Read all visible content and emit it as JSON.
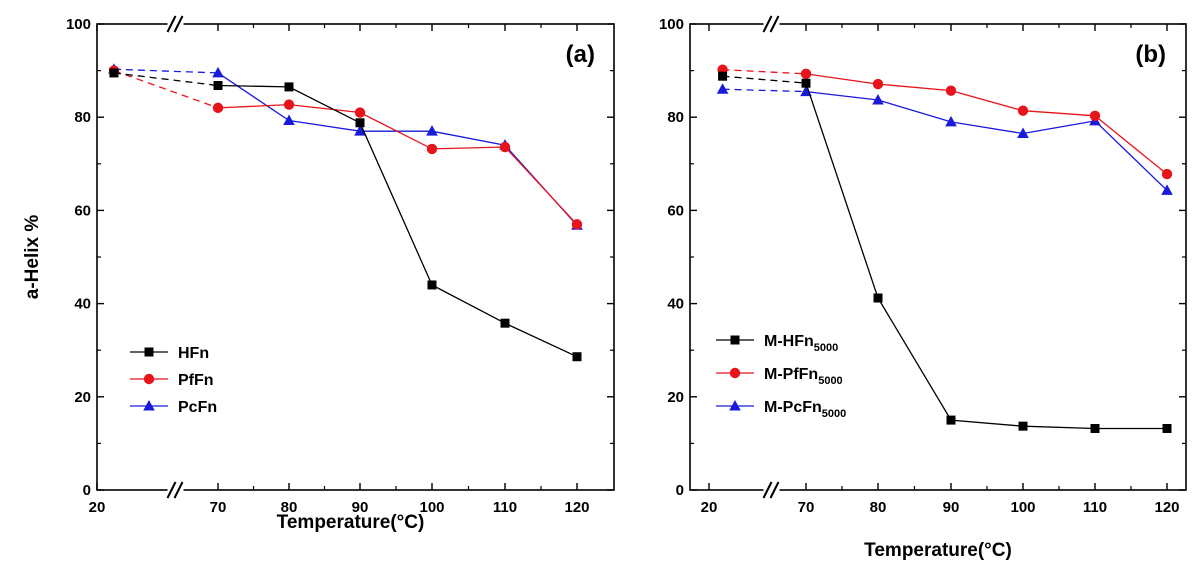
{
  "chart_data": [
    {
      "type": "line",
      "panel_label": "(a)",
      "xlabel": "Temperature(°C)",
      "ylabel": "a-Helix %",
      "x_categories": [
        "20",
        "70",
        "80",
        "90",
        "100",
        "110",
        "120"
      ],
      "axis_break": "//",
      "ylim": [
        0,
        100
      ],
      "yticks": [
        "0",
        "20",
        "40",
        "60",
        "80",
        "100"
      ],
      "legend_position": "bottom-left",
      "series": [
        {
          "name": "HFn",
          "sub": "",
          "color": "#000000",
          "marker": "square",
          "points": [
            [
              27,
              89.5
            ],
            [
              70,
              86.8
            ],
            [
              80,
              86.5
            ],
            [
              90,
              78.8
            ],
            [
              100,
              44.0
            ],
            [
              110,
              35.8
            ],
            [
              120,
              28.6
            ]
          ]
        },
        {
          "name": "PfFn",
          "sub": "",
          "color": "#e8141b",
          "marker": "circle",
          "points": [
            [
              27,
              90.0
            ],
            [
              70,
              82.0
            ],
            [
              80,
              82.7
            ],
            [
              90,
              81.0
            ],
            [
              100,
              73.2
            ],
            [
              110,
              73.6
            ],
            [
              120,
              57.0
            ]
          ]
        },
        {
          "name": "PcFn",
          "sub": "",
          "color": "#1a1adb",
          "marker": "triangle",
          "points": [
            [
              27,
              90.3
            ],
            [
              70,
              89.5
            ],
            [
              80,
              79.3
            ],
            [
              90,
              77.0
            ],
            [
              100,
              77.0
            ],
            [
              110,
              74.0
            ],
            [
              120,
              56.8
            ]
          ]
        }
      ]
    },
    {
      "type": "line",
      "panel_label": "(b)",
      "xlabel": "Temperature(°C)",
      "ylabel": "",
      "x_categories": [
        "20",
        "70",
        "80",
        "90",
        "100",
        "110",
        "120"
      ],
      "axis_break": "//",
      "ylim": [
        0,
        100
      ],
      "yticks": [
        "0",
        "20",
        "40",
        "60",
        "80",
        "100"
      ],
      "legend_position": "bottom-left",
      "series": [
        {
          "name": "M-HFn",
          "sub": "5000",
          "color": "#000000",
          "marker": "square",
          "points": [
            [
              27,
              88.8
            ],
            [
              70,
              87.3
            ],
            [
              80,
              41.2
            ],
            [
              90,
              15.0
            ],
            [
              100,
              13.7
            ],
            [
              110,
              13.2
            ],
            [
              120,
              13.2
            ]
          ]
        },
        {
          "name": "M-PfFn",
          "sub": "5000",
          "color": "#e8141b",
          "marker": "circle",
          "points": [
            [
              27,
              90.2
            ],
            [
              70,
              89.3
            ],
            [
              80,
              87.1
            ],
            [
              90,
              85.7
            ],
            [
              100,
              81.4
            ],
            [
              110,
              80.3
            ],
            [
              120,
              67.8
            ]
          ]
        },
        {
          "name": "M-PcFn",
          "sub": "5000",
          "color": "#1a1adb",
          "marker": "triangle",
          "points": [
            [
              27,
              86.0
            ],
            [
              70,
              85.5
            ],
            [
              80,
              83.7
            ],
            [
              90,
              79.0
            ],
            [
              100,
              76.5
            ],
            [
              110,
              79.2
            ],
            [
              120,
              64.3
            ]
          ]
        }
      ]
    }
  ]
}
